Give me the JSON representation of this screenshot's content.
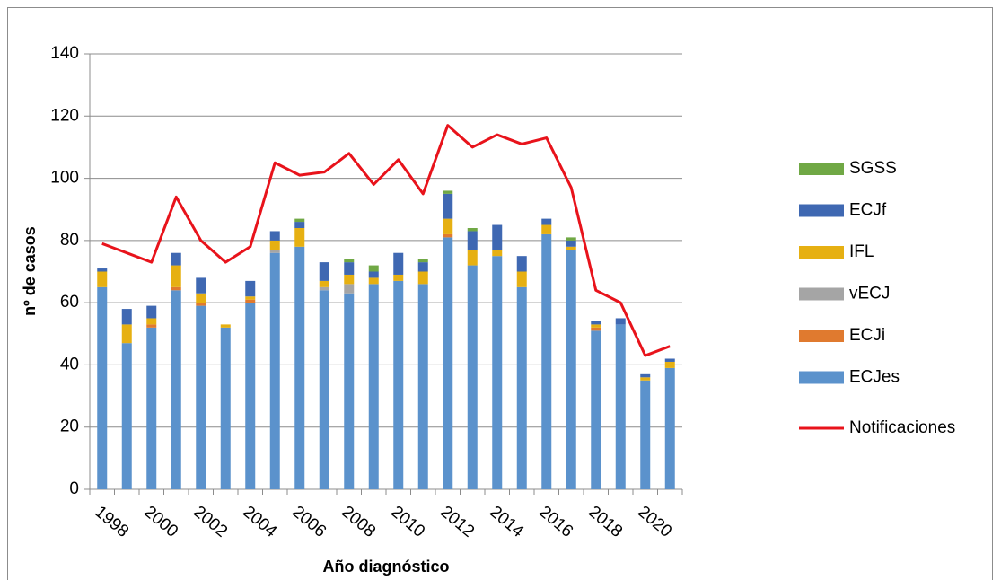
{
  "chart_data": {
    "type": "bar",
    "stacked": true,
    "x_label": "Año diagnóstico",
    "y_label": "nº de casos",
    "categories": [
      "1998",
      null,
      "2000",
      null,
      "2002",
      null,
      "2004",
      null,
      "2006",
      null,
      "2008",
      null,
      "2010",
      null,
      "2012",
      null,
      "2014",
      null,
      "2016",
      null,
      "2018",
      null,
      "2020",
      null
    ],
    "ylim": [
      0,
      140
    ],
    "yticks": [
      0,
      20,
      40,
      60,
      80,
      100,
      120,
      140
    ],
    "grid": true,
    "legend": "right",
    "series": [
      {
        "name": "ECJes",
        "color": "#5b92cc",
        "values": [
          65,
          47,
          52,
          64,
          59,
          52,
          60,
          76,
          78,
          64,
          63,
          66,
          67,
          66,
          81,
          72,
          75,
          65,
          82,
          77,
          51,
          53,
          35,
          39
        ]
      },
      {
        "name": "ECJi",
        "color": "#e07a2f",
        "values": [
          0,
          0,
          1,
          1,
          1,
          0,
          1,
          0,
          0,
          0,
          0,
          0,
          0,
          0,
          1,
          0,
          0,
          0,
          0,
          0,
          1,
          0,
          0,
          0
        ]
      },
      {
        "name": "vECJ",
        "color": "#a5a5a5",
        "values": [
          0,
          0,
          0,
          0,
          0,
          0,
          0,
          1,
          0,
          1,
          3,
          0,
          0,
          0,
          0,
          0,
          0,
          0,
          0,
          0,
          0,
          0,
          0,
          0
        ]
      },
      {
        "name": "IFL",
        "color": "#e6b012",
        "values": [
          5,
          6,
          2,
          7,
          3,
          1,
          1,
          3,
          6,
          2,
          3,
          2,
          2,
          4,
          5,
          5,
          2,
          5,
          3,
          1,
          1,
          0,
          1,
          2
        ]
      },
      {
        "name": "ECJf",
        "color": "#3f68b2",
        "values": [
          1,
          5,
          4,
          4,
          5,
          0,
          5,
          3,
          2,
          6,
          4,
          2,
          7,
          3,
          8,
          6,
          8,
          5,
          2,
          2,
          1,
          2,
          1,
          1
        ]
      },
      {
        "name": "SGSS",
        "color": "#70a845",
        "values": [
          0,
          0,
          0,
          0,
          0,
          0,
          0,
          0,
          1,
          0,
          1,
          2,
          0,
          1,
          1,
          1,
          0,
          0,
          0,
          1,
          0,
          0,
          0,
          0
        ]
      },
      {
        "name": "Notificaciones",
        "type": "line",
        "color": "#e8131b",
        "values": [
          79,
          76,
          73,
          94,
          80,
          73,
          78,
          105,
          101,
          102,
          108,
          98,
          106,
          95,
          117,
          110,
          114,
          111,
          113,
          97,
          64,
          60,
          43,
          46
        ]
      }
    ]
  }
}
